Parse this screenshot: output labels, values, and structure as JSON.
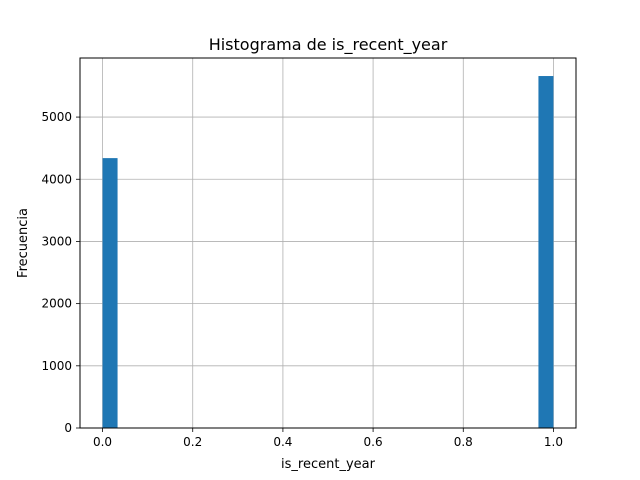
{
  "chart_data": {
    "type": "bar",
    "title": "Histograma de is_recent_year",
    "xlabel": "is_recent_year",
    "ylabel": "Frecuencia",
    "xlim": [
      -0.05,
      1.05
    ],
    "ylim": [
      0,
      5950
    ],
    "xticks": [
      "0.0",
      "0.2",
      "0.4",
      "0.6",
      "0.8",
      "1.0"
    ],
    "yticks": [
      "0",
      "1000",
      "2000",
      "3000",
      "4000",
      "5000"
    ],
    "grid": true,
    "bar_color": "#1f77b4",
    "bins": 30,
    "bars": [
      {
        "x0": 0.0,
        "x1": 0.0333,
        "value": 4340
      },
      {
        "x0": 0.9667,
        "x1": 1.0,
        "value": 5660
      }
    ]
  }
}
